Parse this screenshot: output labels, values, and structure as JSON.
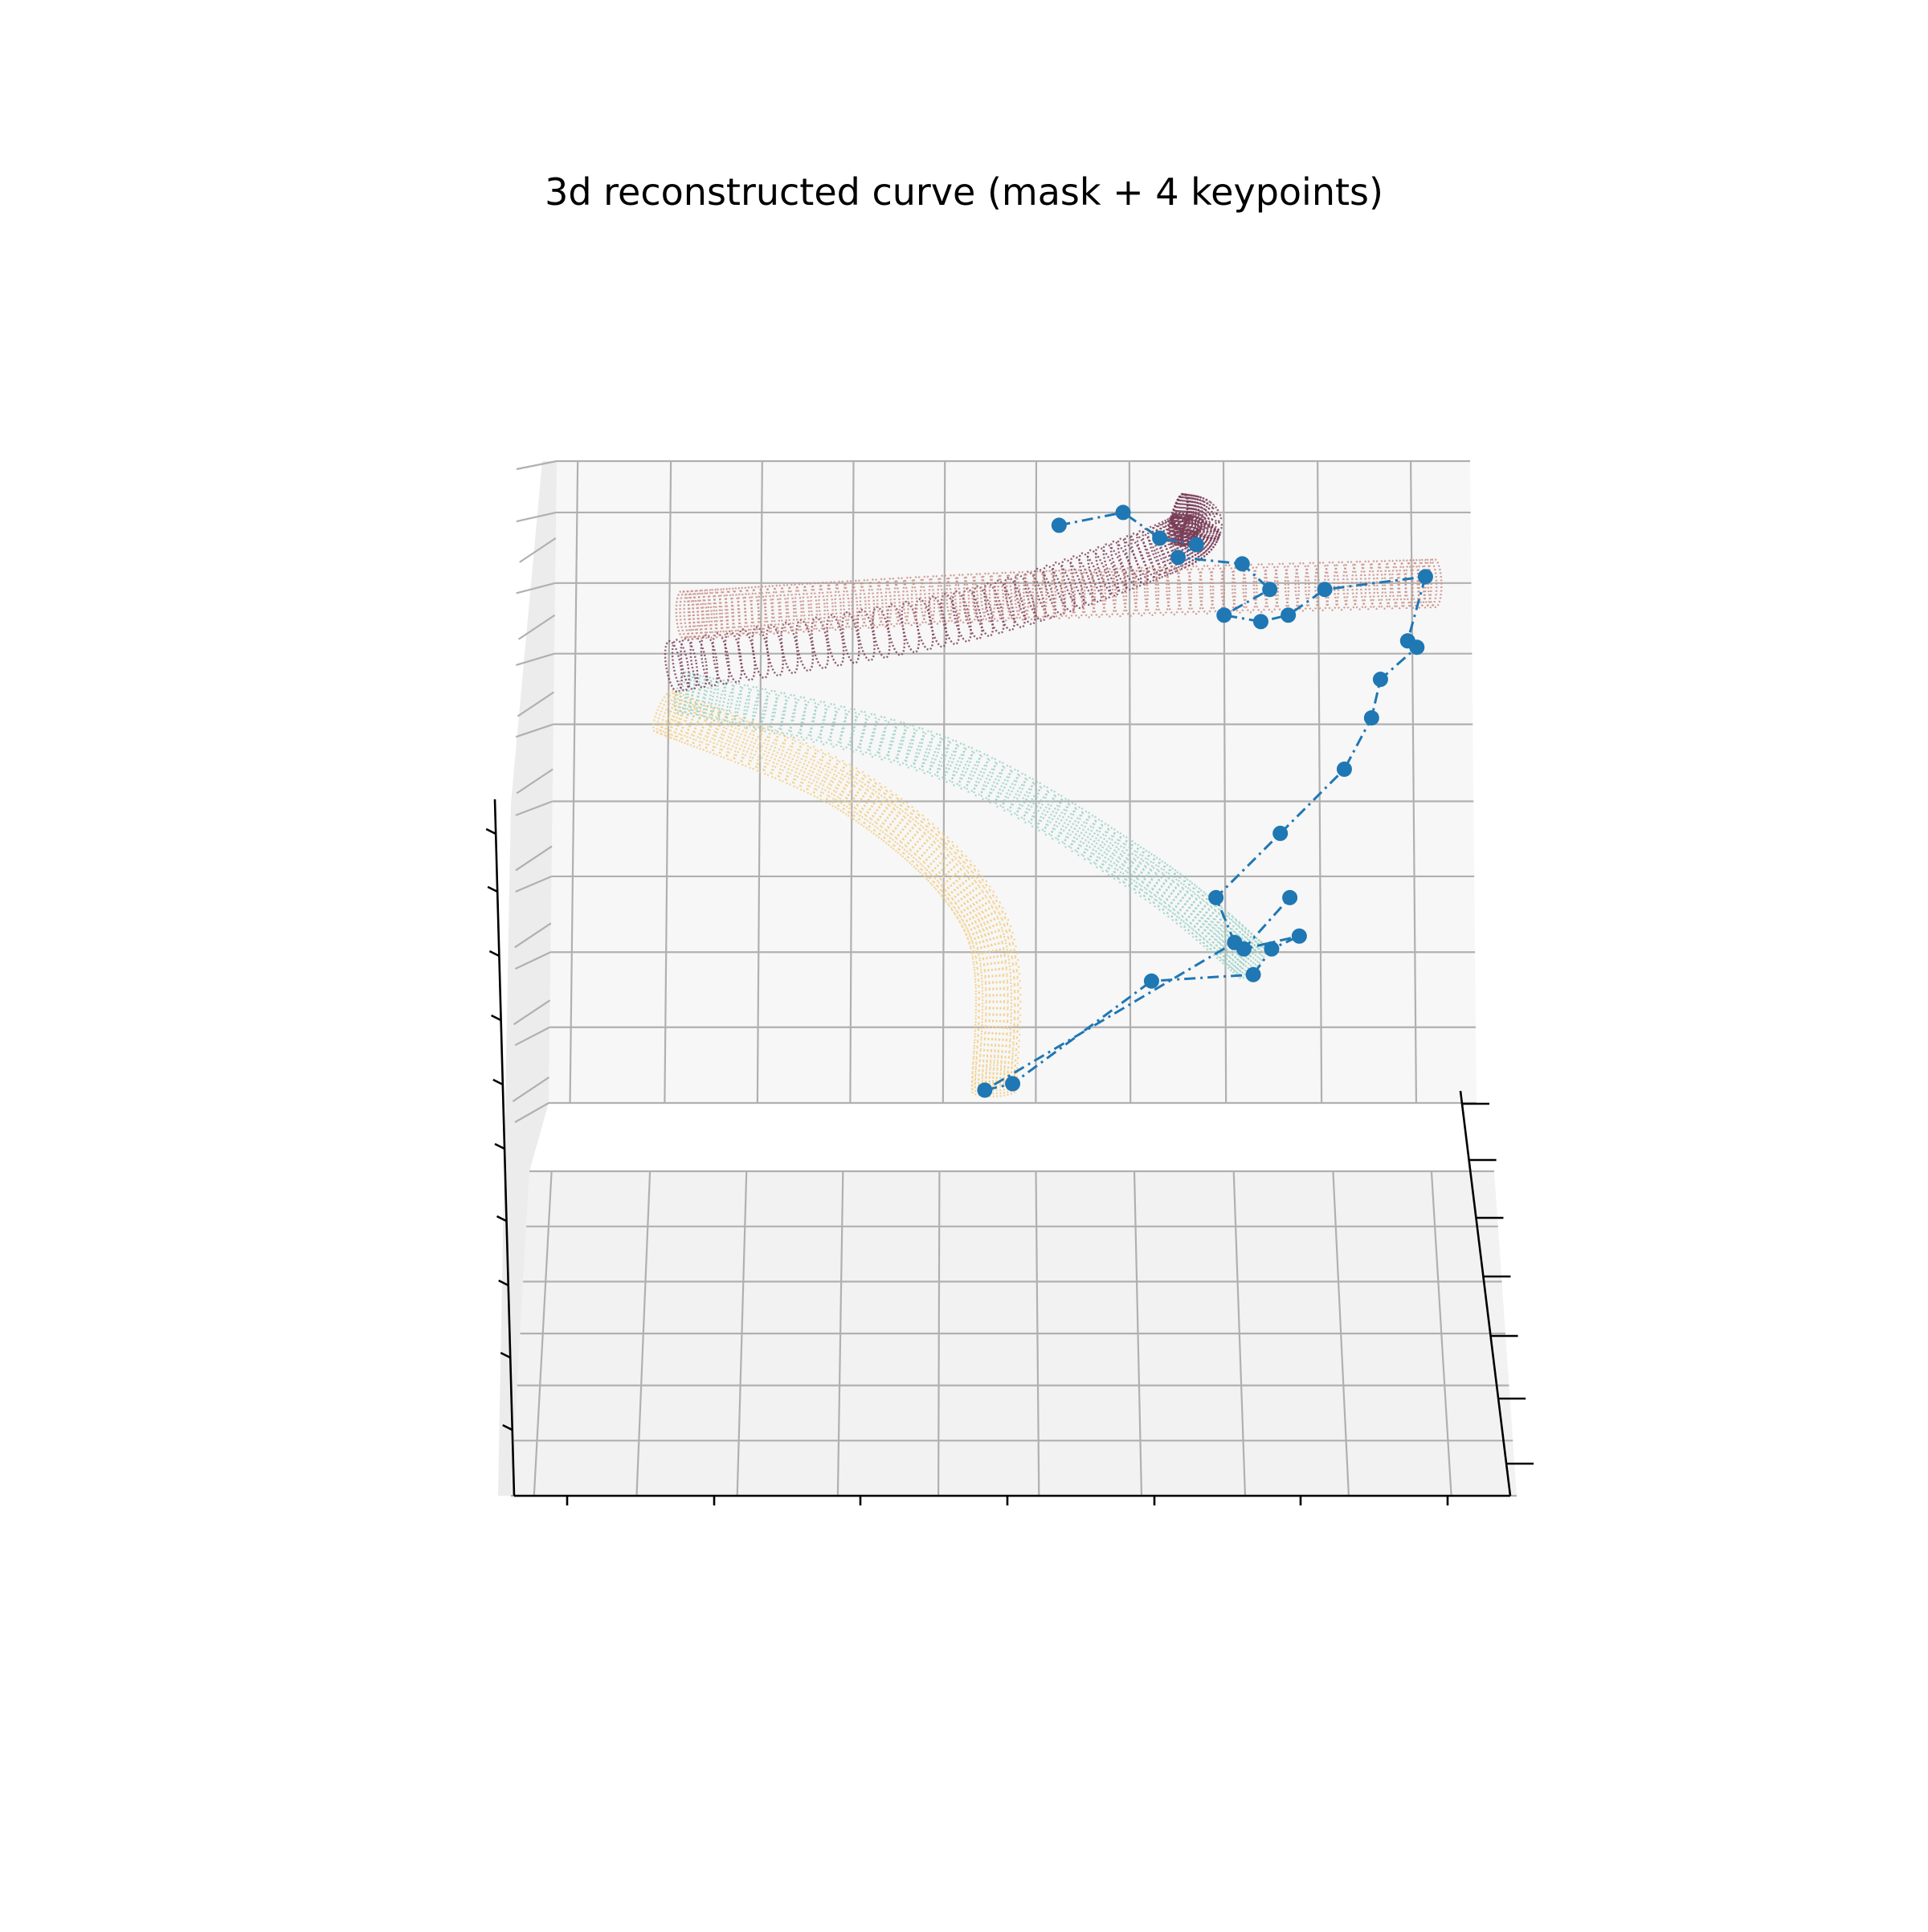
{
  "chart_data": {
    "type": "scatter",
    "projection": "3d",
    "title": "3d reconstructed curve (mask + 4 keypoints)",
    "xlabel": "",
    "ylabel": "",
    "zlabel": "",
    "tick_labels_shown": false,
    "grid": true,
    "legend": "none",
    "colors": {
      "pane_back": "#f7f7f7",
      "pane_floor": "#f2f2f2",
      "grid": "#b0b0b0",
      "keypoint": "#1f77b4",
      "tube_front": "#c98f86",
      "tube_back": "#7a3e58",
      "tube_teal": "#9ed2c8",
      "tube_yellow": "#f3cf86"
    },
    "series": [
      {
        "type": "tube",
        "color": "#c98f86",
        "points": [
          [
            0.14,
            0.55,
            0.76
          ],
          [
            0.5,
            0.55,
            0.79
          ],
          [
            0.96,
            0.55,
            0.81
          ]
        ]
      },
      {
        "type": "tube",
        "color": "#7a3e58",
        "points": [
          [
            0.13,
            0.55,
            0.68
          ],
          [
            0.45,
            0.62,
            0.76
          ],
          [
            0.66,
            0.76,
            0.86
          ],
          [
            0.7,
            0.88,
            0.9
          ],
          [
            0.68,
            0.95,
            0.91
          ]
        ]
      },
      {
        "type": "tube",
        "color": "#9ed2c8",
        "points": [
          [
            0.14,
            0.55,
            0.64
          ],
          [
            0.42,
            0.55,
            0.54
          ],
          [
            0.64,
            0.55,
            0.36
          ],
          [
            0.76,
            0.55,
            0.22
          ]
        ]
      },
      {
        "type": "tube",
        "color": "#f3cf86",
        "points": [
          [
            0.12,
            0.55,
            0.61
          ],
          [
            0.33,
            0.55,
            0.48
          ],
          [
            0.47,
            0.55,
            0.28
          ],
          [
            0.48,
            0.55,
            0.02
          ]
        ]
      },
      {
        "type": "line-markers",
        "name": "keypoints",
        "color": "#1f77b4",
        "points": [
          [
            0.55,
            0.9,
            0.9
          ],
          [
            0.62,
            0.92,
            0.92
          ],
          [
            0.66,
            0.87,
            0.88
          ],
          [
            0.7,
            0.86,
            0.87
          ],
          [
            0.68,
            0.82,
            0.85
          ],
          [
            0.75,
            0.78,
            0.84
          ],
          [
            0.78,
            0.74,
            0.8
          ],
          [
            0.73,
            0.71,
            0.76
          ],
          [
            0.77,
            0.69,
            0.75
          ],
          [
            0.8,
            0.71,
            0.76
          ],
          [
            0.84,
            0.72,
            0.8
          ],
          [
            0.95,
            0.72,
            0.82
          ],
          [
            0.93,
            0.62,
            0.72
          ],
          [
            0.94,
            0.63,
            0.71
          ],
          [
            0.9,
            0.58,
            0.66
          ],
          [
            0.89,
            0.54,
            0.6
          ],
          [
            0.86,
            0.5,
            0.52
          ],
          [
            0.79,
            0.47,
            0.42
          ],
          [
            0.72,
            0.44,
            0.32
          ],
          [
            0.74,
            0.4,
            0.25
          ],
          [
            0.47,
            0.36,
            0.02
          ],
          [
            0.5,
            0.36,
            0.03
          ],
          [
            0.65,
            0.38,
            0.19
          ],
          [
            0.76,
            0.39,
            0.2
          ],
          [
            0.78,
            0.38,
            0.24
          ],
          [
            0.81,
            0.39,
            0.26
          ],
          [
            0.75,
            0.42,
            0.24
          ],
          [
            0.8,
            0.45,
            0.32
          ]
        ]
      }
    ]
  }
}
